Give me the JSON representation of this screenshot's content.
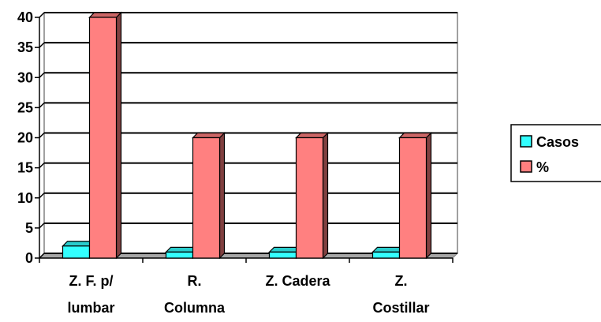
{
  "chart_data": {
    "type": "bar",
    "categories": [
      [
        "Z. F. p/",
        "lumbar"
      ],
      [
        "R.",
        "Columna"
      ],
      [
        "Z. Cadera"
      ],
      [
        "Z.",
        "Costillar"
      ]
    ],
    "series": [
      {
        "name": "Casos",
        "values": [
          2,
          1,
          1,
          1
        ],
        "color": "#33ffff"
      },
      {
        "name": "%",
        "values": [
          40,
          20,
          20,
          20
        ],
        "color": "#ff8080"
      }
    ],
    "y_ticks": [
      "0",
      "5",
      "10",
      "15",
      "20",
      "25",
      "30",
      "35",
      "40"
    ],
    "ylim": [
      0,
      40
    ],
    "grid": true,
    "legend_position": "right"
  }
}
